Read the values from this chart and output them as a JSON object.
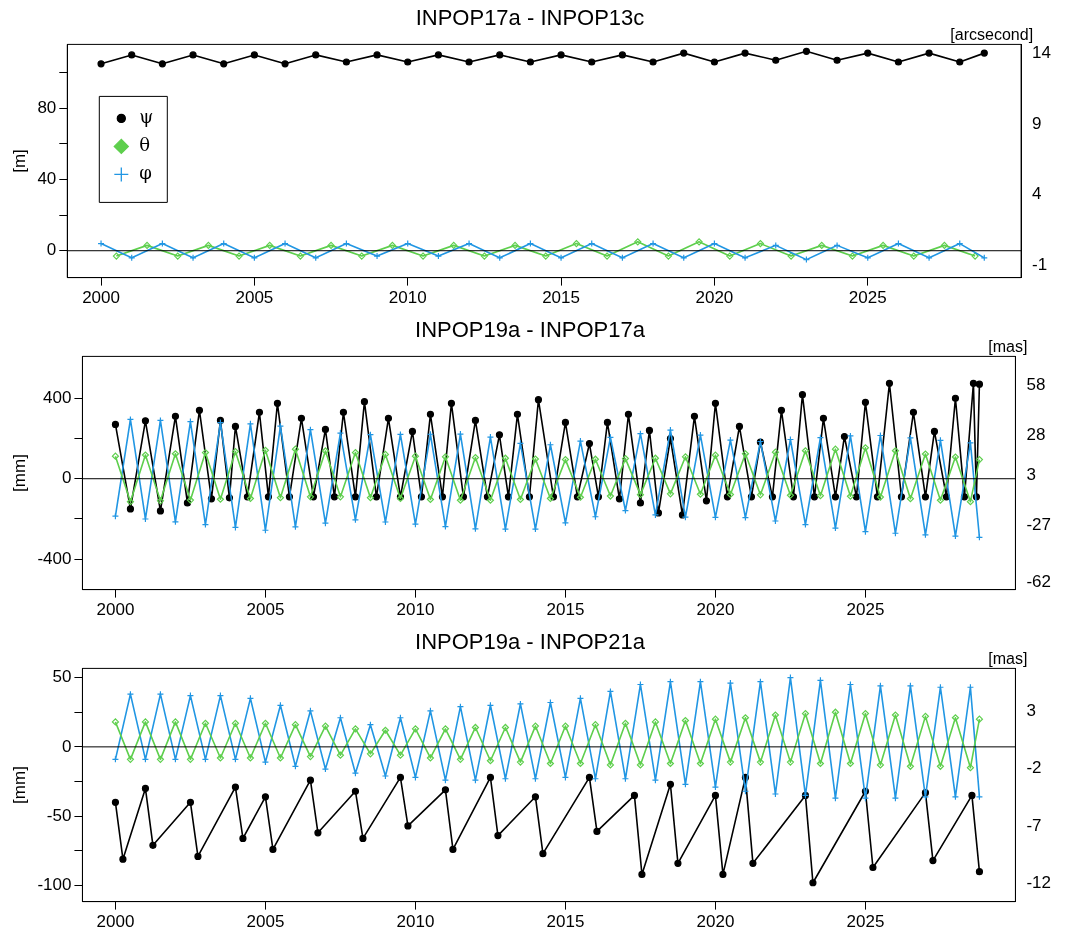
{
  "chart_data": [
    {
      "type": "line",
      "title": "INPOP17a - INPOP13c",
      "ylabel": "[m]",
      "y2label": "[arcsecond]",
      "xlim": [
        1998.9,
        2030
      ],
      "xticks": [
        2000,
        2005,
        2010,
        2015,
        2020,
        2025
      ],
      "ylim": [
        -15.1,
        115.9
      ],
      "yticks": [
        0,
        {
          "value": 20,
          "label": null
        },
        40,
        {
          "value": 60,
          "label": null
        },
        80,
        {
          "value": 100,
          "label": null
        }
      ],
      "y2lim": [
        -1.87,
        14.63
      ],
      "y2ticks": [
        -1,
        4,
        9,
        14
      ],
      "grid": false,
      "legend": "top left",
      "ref_lines": [
        {
          "axis": "y",
          "value": 0,
          "color": "#000000"
        }
      ],
      "x": [
        2000,
        2001,
        2002,
        2003,
        2004,
        2005,
        2006,
        2007,
        2008,
        2009,
        2010,
        2011,
        2012,
        2013,
        2014,
        2015,
        2016,
        2017,
        2018,
        2019,
        2020,
        2021,
        2022,
        2023,
        2024,
        2025,
        2026,
        2027,
        2028,
        2028.8
      ],
      "series": [
        {
          "name": "ψ",
          "color": "#000000",
          "marker": "circle",
          "values": [
            105,
            110,
            105,
            110,
            105,
            110,
            105,
            110,
            106,
            110,
            106,
            110,
            106,
            110,
            106,
            110,
            106,
            110,
            106,
            111,
            106,
            111,
            107,
            112,
            107,
            111,
            106,
            111,
            106,
            111
          ]
        },
        {
          "name": "θ",
          "color": "#5ecf4d",
          "marker": "diamond",
          "x": [
            2000.5,
            2001.5,
            2002.5,
            2003.5,
            2004.5,
            2005.5,
            2006.5,
            2007.5,
            2008.5,
            2009.5,
            2010.5,
            2011.5,
            2012.5,
            2013.5,
            2014.5,
            2015.5,
            2016.5,
            2017.5,
            2018.5,
            2019.5,
            2020.5,
            2021.5,
            2022.5,
            2023.5,
            2024.5,
            2025.5,
            2026.5,
            2027.5,
            2028.5
          ],
          "values": [
            -3,
            3,
            -3,
            3,
            -3,
            3,
            -3,
            3,
            -3,
            3,
            -3,
            3,
            -3,
            3,
            -3,
            4,
            -3,
            5,
            -3,
            5,
            -3,
            4,
            -3,
            3,
            -3,
            3,
            -3,
            3,
            -3
          ]
        },
        {
          "name": "φ",
          "color": "#2196e3",
          "marker": "cross",
          "values": [
            4,
            -4,
            4,
            -4,
            4,
            -4,
            4,
            -4,
            4,
            -3,
            4,
            -3,
            4,
            -4,
            4,
            -4,
            4,
            -4,
            4,
            -4,
            4,
            -4,
            3,
            -5,
            3,
            -4,
            4,
            -4,
            4,
            -4
          ]
        }
      ]
    },
    {
      "type": "line",
      "title": "INPOP19a - INPOP17a",
      "ylabel": "[mm]",
      "y2label": "[mas]",
      "xlim": [
        1998.9,
        2030
      ],
      "xticks": [
        2000,
        2005,
        2010,
        2015,
        2020,
        2025
      ],
      "ylim": [
        -551,
        608
      ],
      "yticks": [
        -400,
        {
          "value": -200,
          "label": null
        },
        0,
        {
          "value": 200,
          "label": null
        },
        400
      ],
      "y2lim": [
        -66.5,
        75.9
      ],
      "y2ticks": [
        -62,
        -27,
        3,
        28,
        58
      ],
      "grid": false,
      "ref_lines": [
        {
          "axis": "y",
          "value": 0,
          "color": "#000000"
        }
      ],
      "x": [
        2000,
        2000.5,
        2001,
        2001.5,
        2002,
        2002.5,
        2003,
        2003.5,
        2004,
        2004.5,
        2005,
        2005.5,
        2006,
        2006.5,
        2007,
        2007.5,
        2008,
        2008.5,
        2009,
        2009.5,
        2010,
        2010.5,
        2011,
        2011.5,
        2012,
        2012.5,
        2013,
        2013.5,
        2014,
        2014.5,
        2015,
        2015.5,
        2016,
        2016.5,
        2017,
        2017.5,
        2018,
        2018.5,
        2019,
        2019.5,
        2020,
        2020.5,
        2021,
        2021.5,
        2022,
        2022.5,
        2023,
        2023.5,
        2024,
        2024.5,
        2025,
        2025.5,
        2026,
        2026.5,
        2027,
        2027.5,
        2028,
        2028.5,
        2028.8
      ],
      "series": [
        {
          "color": "#000000",
          "marker": "circle",
          "x": [
            2000,
            2000.5,
            2001,
            2001.5,
            2002,
            2002.4,
            2002.8,
            2003.2,
            2003.5,
            2003.8,
            2004,
            2004.4,
            2004.8,
            2005.1,
            2005.4,
            2005.8,
            2006.2,
            2006.6,
            2007,
            2007.3,
            2007.6,
            2008,
            2008.3,
            2008.7,
            2009.1,
            2009.5,
            2009.9,
            2010.2,
            2010.5,
            2010.9,
            2011.2,
            2011.6,
            2012,
            2012.4,
            2012.8,
            2013.1,
            2013.4,
            2013.8,
            2014.1,
            2014.6,
            2015,
            2015.4,
            2015.8,
            2016.1,
            2016.4,
            2016.8,
            2017.1,
            2017.5,
            2017.8,
            2018.1,
            2018.5,
            2018.9,
            2019.3,
            2019.7,
            2020,
            2020.4,
            2020.8,
            2021.2,
            2021.5,
            2021.9,
            2022.2,
            2022.6,
            2022.9,
            2023.3,
            2023.6,
            2024,
            2024.3,
            2024.7,
            2025,
            2025.4,
            2025.8,
            2026.2,
            2026.6,
            2027,
            2027.3,
            2027.7,
            2028,
            2028.3,
            2028.6,
            2028.7,
            2028.8
          ],
          "values": [
            270,
            -150,
            288,
            -160,
            310,
            -120,
            340,
            -100,
            290,
            -95,
            260,
            -90,
            330,
            -90,
            375,
            -90,
            300,
            -90,
            245,
            -90,
            330,
            -90,
            383,
            -90,
            300,
            -90,
            235,
            -90,
            320,
            -90,
            375,
            -90,
            290,
            -90,
            218,
            -90,
            320,
            -90,
            393,
            -90,
            280,
            -90,
            175,
            -90,
            280,
            -100,
            320,
            -120,
            240,
            -170,
            200,
            -180,
            310,
            -110,
            375,
            -90,
            260,
            -90,
            182,
            -90,
            340,
            -90,
            418,
            -90,
            300,
            -90,
            210,
            -90,
            380,
            -90,
            474,
            -90,
            330,
            -90,
            235,
            -90,
            400,
            -90,
            474,
            -90,
            470
          ]
        },
        {
          "color": "#2196e3",
          "marker": "cross",
          "values": [
            -186,
            295,
            -200,
            290,
            -214,
            284,
            -228,
            279,
            -242,
            273,
            -256,
            261,
            -239,
            244,
            -221,
            227,
            -204,
            219,
            -215,
            220,
            -226,
            221,
            -238,
            222,
            -249,
            207,
            -250,
            176,
            -250,
            169,
            -219,
            187,
            -189,
            206,
            -158,
            224,
            -180,
            242,
            -191,
            217,
            -192,
            192,
            -193,
            185,
            -210,
            195,
            -228,
            204,
            -245,
            213,
            -263,
            215,
            -271,
            203,
            -279,
            191,
            -285,
            178,
            -291
          ]
        },
        {
          "color": "#5ecf4d",
          "marker": "diamond",
          "values": [
            112,
            -114,
            118,
            -110,
            124,
            -106,
            130,
            -102,
            135,
            -98,
            141,
            -94,
            147,
            -90,
            138,
            -90,
            130,
            -94,
            121,
            -98,
            112,
            -103,
            109,
            -107,
            105,
            -107,
            102,
            -103,
            98,
            -98,
            95,
            -92,
            97,
            -86,
            100,
            -79,
            102,
            -75,
            109,
            -77,
            117,
            -78,
            124,
            -80,
            132,
            -82,
            139,
            -84,
            147,
            -87,
            154,
            -91,
            139,
            -99,
            123,
            -107,
            108,
            -114,
            95
          ]
        }
      ]
    },
    {
      "type": "line",
      "title": "INPOP19a - INPOP21a",
      "ylabel": "[mm]",
      "y2label": "[mas]",
      "xlim": [
        1998.9,
        2030
      ],
      "xticks": [
        2000,
        2005,
        2010,
        2015,
        2020,
        2025
      ],
      "ylim": [
        -111.6,
        56.6
      ],
      "yticks": [
        -100,
        {
          "value": -75,
          "label": null
        },
        -50,
        {
          "value": -25,
          "label": null
        },
        0,
        {
          "value": 25,
          "label": null
        },
        50
      ],
      "y2lim": [
        -13.6,
        6.75
      ],
      "y2ticks": [
        -12,
        -7,
        -2,
        3
      ],
      "grid": false,
      "ref_lines": [
        {
          "axis": "y",
          "value": 0,
          "color": "#000000"
        }
      ],
      "x": [
        2000,
        2000.5,
        2001,
        2001.5,
        2002,
        2002.5,
        2003,
        2003.5,
        2004,
        2004.5,
        2005,
        2005.5,
        2006,
        2006.5,
        2007,
        2007.5,
        2008,
        2008.5,
        2009,
        2009.5,
        2010,
        2010.5,
        2011,
        2011.5,
        2012,
        2012.5,
        2013,
        2013.5,
        2014,
        2014.5,
        2015,
        2015.5,
        2016,
        2016.5,
        2017,
        2017.5,
        2018,
        2018.5,
        2019,
        2019.5,
        2020,
        2020.5,
        2021,
        2021.5,
        2022,
        2022.5,
        2023,
        2023.5,
        2024,
        2024.5,
        2025,
        2025.5,
        2026,
        2026.5,
        2027,
        2027.5,
        2028,
        2028.5,
        2028.8
      ],
      "series": [
        {
          "color": "#000000",
          "marker": "circle",
          "x": [
            2000,
            2000.25,
            2001,
            2001.25,
            2002.5,
            2002.75,
            2004,
            2004.25,
            2005,
            2005.25,
            2006.5,
            2006.75,
            2008,
            2008.25,
            2009.5,
            2009.75,
            2011,
            2011.25,
            2012.5,
            2012.75,
            2014,
            2014.25,
            2015.8,
            2016.05,
            2017.3,
            2017.55,
            2018.5,
            2018.75,
            2020,
            2020.25,
            2021,
            2021.25,
            2023,
            2023.25,
            2025,
            2025.25,
            2027,
            2027.25,
            2028.55,
            2028.8
          ],
          "values": [
            -40,
            -81,
            -30,
            -71,
            -40,
            -79,
            -29,
            -66,
            -36,
            -74,
            -24,
            -62,
            -32,
            -66,
            -22,
            -57,
            -31,
            -74,
            -22,
            -64,
            -36,
            -77,
            -22,
            -61,
            -35,
            -92,
            -27,
            -84,
            -35,
            -92,
            -22,
            -84,
            -35,
            -98,
            -32,
            -87,
            -33,
            -82,
            -35,
            -90
          ]
        },
        {
          "color": "#2196e3",
          "marker": "cross",
          "values": [
            -9,
            38,
            -9,
            38,
            -9,
            37,
            -9,
            37,
            -9,
            35,
            -11,
            30,
            -14,
            26,
            -16,
            21,
            -19,
            16,
            -21,
            21,
            -22,
            26,
            -24,
            29,
            -24,
            30,
            -23,
            31,
            -23,
            32,
            -22,
            35,
            -23,
            40,
            -23,
            45,
            -24,
            47,
            -27,
            47,
            -29,
            46,
            -32,
            47,
            -34,
            50,
            -35,
            48,
            -37,
            45,
            -37,
            44,
            -37,
            44,
            -36,
            43,
            -36,
            43,
            -36
          ]
        },
        {
          "color": "#5ecf4d",
          "marker": "diamond",
          "values": [
            18,
            -9,
            18,
            -9,
            18,
            -9,
            17,
            -8,
            17,
            -8,
            17,
            -8,
            16,
            -7,
            15,
            -6,
            13,
            -5,
            12,
            -6,
            13,
            -8,
            13,
            -9,
            14,
            -10,
            14,
            -11,
            15,
            -12,
            15,
            -12,
            16,
            -13,
            17,
            -13,
            18,
            -12,
            19,
            -12,
            20,
            -11,
            21,
            -11,
            23,
            -11,
            24,
            -12,
            25,
            -12,
            24,
            -13,
            23,
            -14,
            22,
            -14,
            21,
            -15,
            20
          ]
        }
      ]
    }
  ]
}
